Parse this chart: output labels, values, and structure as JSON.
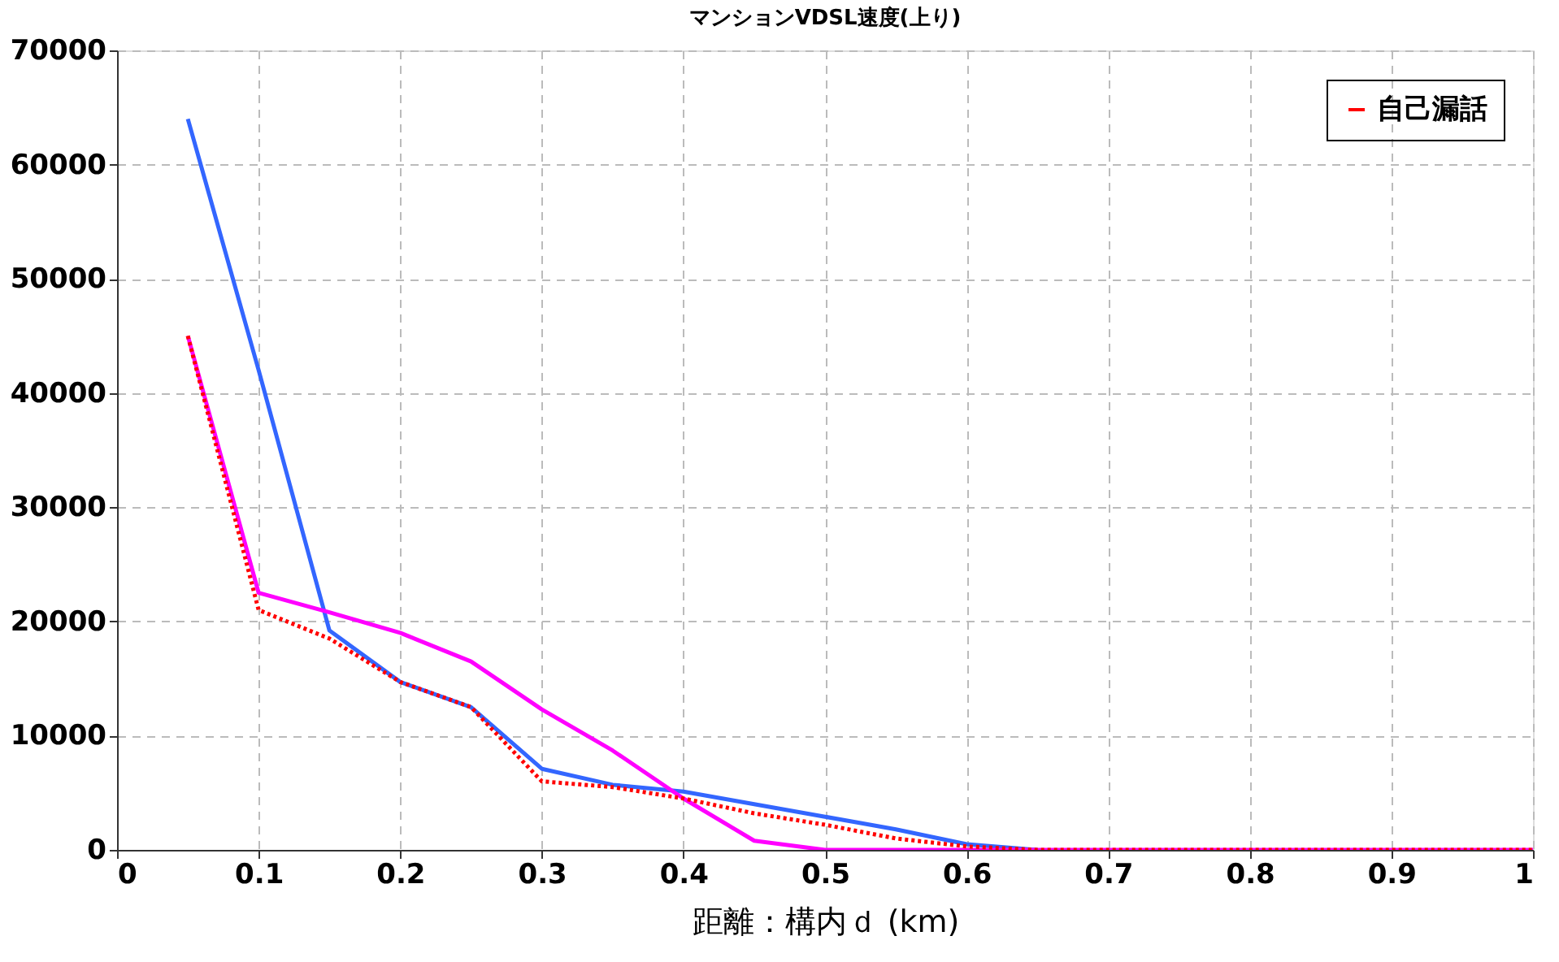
{
  "chart_data": {
    "type": "line",
    "title": "マンションVDSL速度(上り)",
    "xlabel": "距離：構内ｄ (km)",
    "x": [
      0.05,
      0.1,
      0.15,
      0.2,
      0.25,
      0.3,
      0.35,
      0.4,
      0.45,
      0.5,
      0.55,
      0.6,
      0.65,
      0.7,
      0.75,
      0.8,
      0.85,
      0.9,
      0.95,
      1.0
    ],
    "series": [
      {
        "name": "自己漏話",
        "color": "#ff0000",
        "line_style": "dotted",
        "values": [
          45000,
          21000,
          18500,
          14700,
          12500,
          6000,
          5500,
          4500,
          3200,
          2200,
          1000,
          300,
          0,
          0,
          0,
          0,
          0,
          0,
          0,
          0
        ]
      },
      {
        "color": "#ff00ff",
        "line_style": "solid",
        "values": [
          45000,
          22500,
          20800,
          19000,
          16500,
          12300,
          8700,
          4500,
          800,
          0,
          0,
          0,
          0,
          0,
          0,
          0,
          0,
          0,
          0,
          0
        ]
      },
      {
        "color": "#3366ff",
        "line_style": "solid",
        "values": [
          64000,
          42000,
          19200,
          14700,
          12500,
          7100,
          5700,
          5100,
          4000,
          2900,
          1800,
          500,
          0,
          null,
          null,
          null,
          null,
          null,
          null,
          null
        ]
      }
    ],
    "xlim": [
      0,
      1
    ],
    "xticks": [
      0,
      0.1,
      0.2,
      0.3,
      0.4,
      0.5,
      0.6,
      0.7,
      0.8,
      0.9,
      1
    ],
    "ylim": [
      0,
      70000
    ],
    "yticks": [
      0,
      10000,
      20000,
      30000,
      40000,
      50000,
      60000,
      70000
    ],
    "grid": true,
    "legend": "top right",
    "marker": "none"
  }
}
